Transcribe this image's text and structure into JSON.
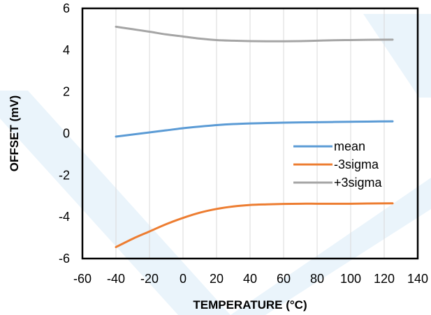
{
  "chart_data": {
    "type": "line",
    "title": "",
    "xlabel": "TEMPERATURE (°C)",
    "ylabel": "OFFSET (mV)",
    "xlim": [
      -60,
      140
    ],
    "ylim": [
      -6,
      6
    ],
    "x_ticks": [
      -60,
      -40,
      -20,
      0,
      20,
      40,
      60,
      80,
      100,
      120,
      140
    ],
    "x_tick_labels": [
      "-60",
      "-40",
      "-20",
      "0",
      "20",
      "40",
      "60",
      "80",
      "100",
      "120",
      "140"
    ],
    "y_ticks": [
      -6,
      -4,
      -2,
      0,
      2,
      4,
      6
    ],
    "y_tick_labels": [
      "-6",
      "-4",
      "-2",
      "0",
      "2",
      "4",
      "6"
    ],
    "grid": "vertical",
    "legend_position": "right",
    "x": [
      -40,
      -30,
      -20,
      -10,
      0,
      10,
      20,
      30,
      40,
      50,
      60,
      70,
      80,
      90,
      100,
      110,
      125
    ],
    "series": [
      {
        "name": "mean",
        "color": "#5B9BD5",
        "values": [
          -0.15,
          -0.05,
          0.05,
          0.15,
          0.25,
          0.33,
          0.4,
          0.45,
          0.48,
          0.5,
          0.52,
          0.53,
          0.54,
          0.55,
          0.56,
          0.57,
          0.58
        ]
      },
      {
        "name": "-3sigma",
        "color": "#ED7D31",
        "values": [
          -5.45,
          -5.05,
          -4.7,
          -4.35,
          -4.05,
          -3.8,
          -3.62,
          -3.5,
          -3.43,
          -3.4,
          -3.38,
          -3.37,
          -3.37,
          -3.37,
          -3.37,
          -3.36,
          -3.35
        ]
      },
      {
        "name": "+3sigma",
        "color": "#A5A5A5",
        "values": [
          5.12,
          5.0,
          4.88,
          4.75,
          4.65,
          4.55,
          4.48,
          4.45,
          4.43,
          4.42,
          4.42,
          4.43,
          4.45,
          4.47,
          4.48,
          4.49,
          4.5
        ]
      }
    ]
  }
}
